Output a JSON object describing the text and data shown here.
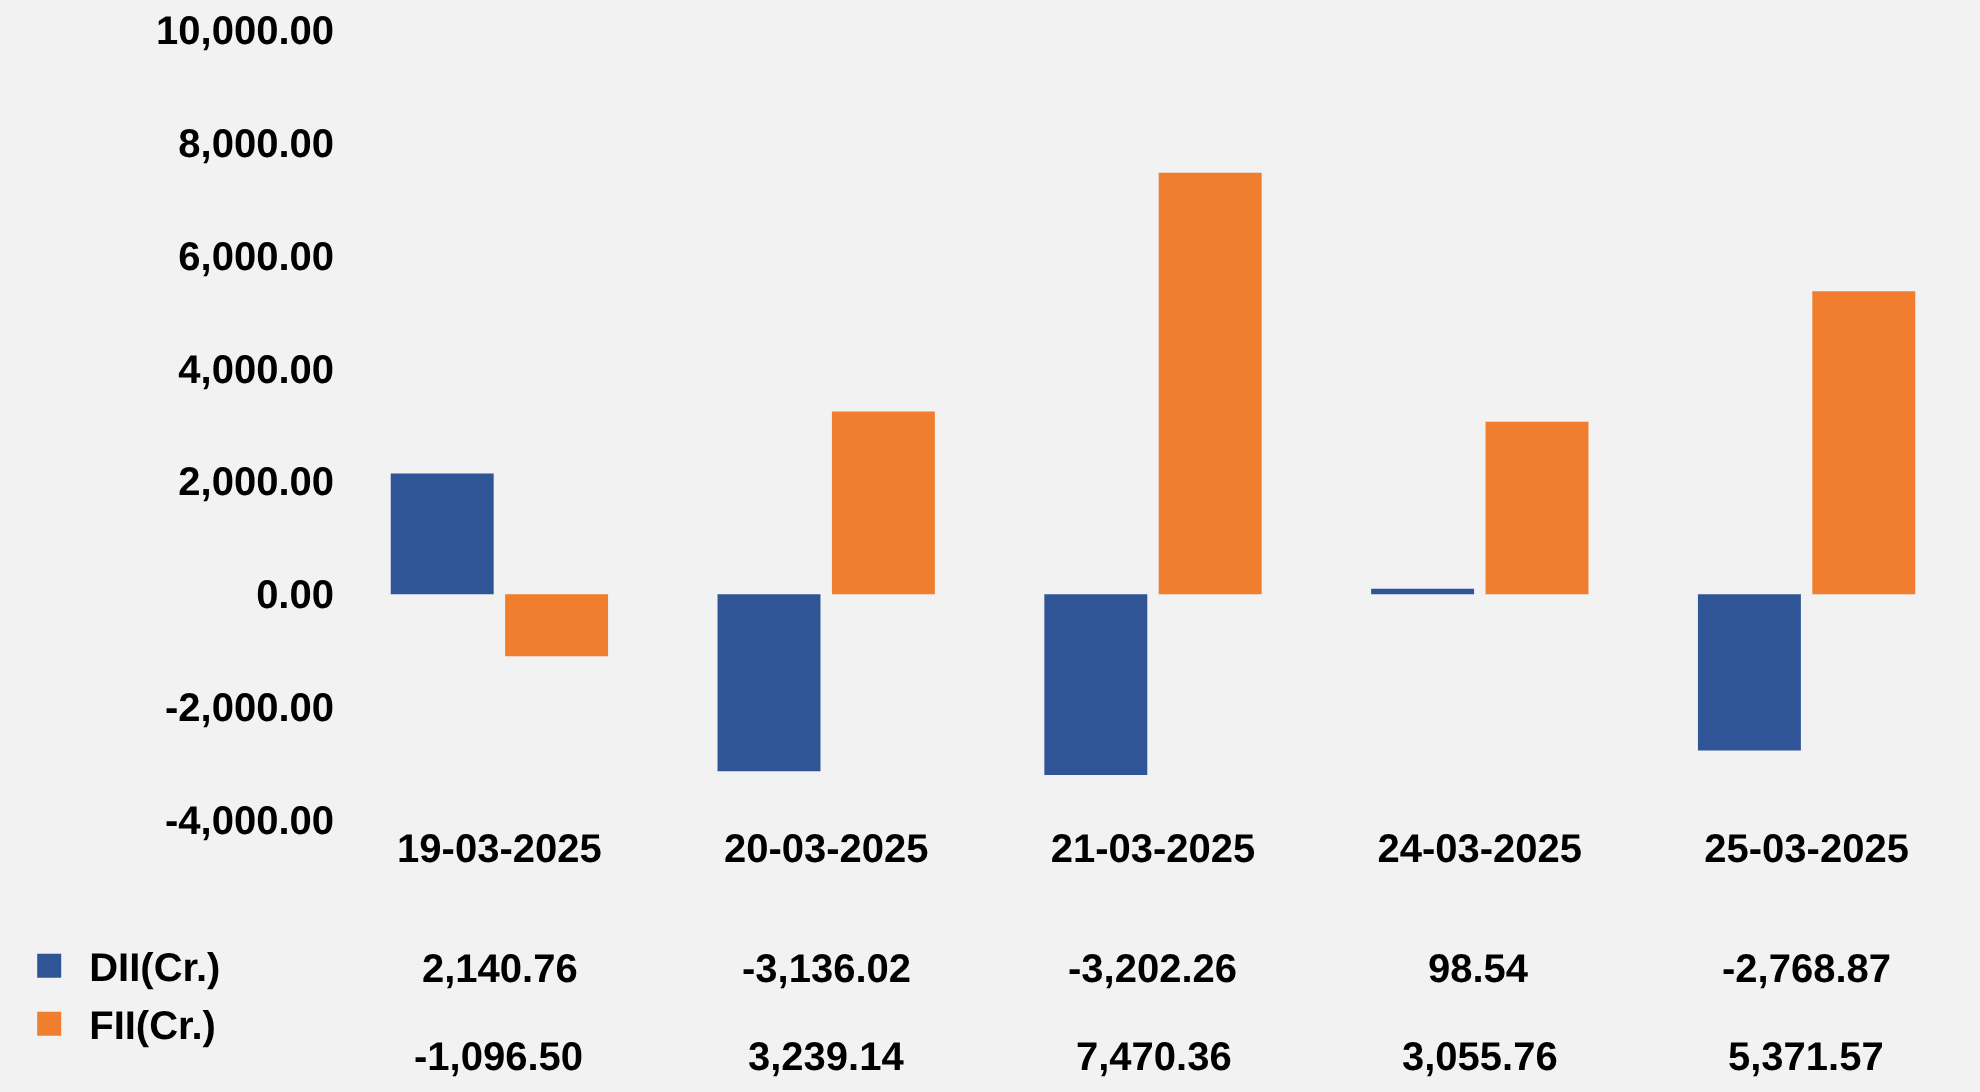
{
  "chart_data": {
    "type": "bar",
    "categories": [
      "19-03-2025",
      "20-03-2025",
      "21-03-2025",
      "24-03-2025",
      "25-03-2025"
    ],
    "series": [
      {
        "name": "DII(Cr.)",
        "color": "#2f5597",
        "values": [
          2140.76,
          -3136.02,
          -3202.26,
          98.54,
          -2768.87
        ],
        "value_labels": [
          "2,140.76",
          "-3,136.02",
          "-3,202.26",
          "98.54",
          "-2,768.87"
        ]
      },
      {
        "name": "FII(Cr.)",
        "color": "#f07e2e",
        "values": [
          -1096.5,
          3239.14,
          7470.36,
          3055.76,
          5371.57
        ],
        "value_labels": [
          "-1,096.50",
          "3,239.14",
          "7,470.36",
          "3,055.76",
          "5,371.57"
        ]
      }
    ],
    "ylim": [
      -4000,
      10000
    ],
    "yticks": [
      {
        "value": -4000,
        "label": "-4,000.00"
      },
      {
        "value": -2000,
        "label": "-2,000.00"
      },
      {
        "value": 0,
        "label": "0.00"
      },
      {
        "value": 2000,
        "label": "2,000.00"
      },
      {
        "value": 4000,
        "label": "4,000.00"
      },
      {
        "value": 6000,
        "label": "6,000.00"
      },
      {
        "value": 8000,
        "label": "8,000.00"
      },
      {
        "value": 10000,
        "label": "10,000.00"
      }
    ],
    "grid": false,
    "legend": "bottom left"
  }
}
